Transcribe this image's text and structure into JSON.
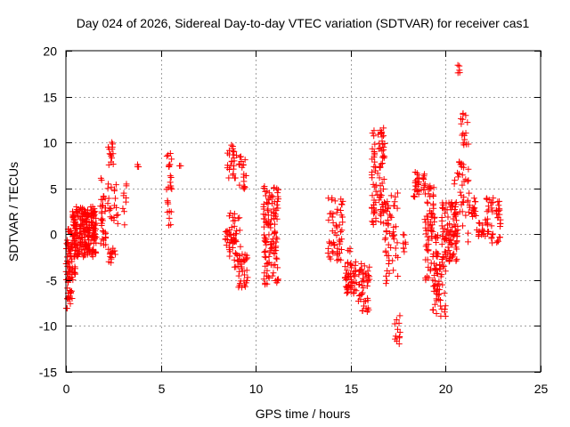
{
  "chart_data": {
    "type": "scatter",
    "title": "Day 024 of 2026, Sidereal Day-to-day VTEC variation (SDTVAR) for receiver cas1",
    "xlabel": "GPS time / hours",
    "ylabel": "SDTVAR / TECUs",
    "xlim": [
      0,
      25
    ],
    "ylim": [
      -15,
      20
    ],
    "xticks": [
      0,
      5,
      10,
      15,
      20,
      25
    ],
    "yticks": [
      -15,
      -10,
      -5,
      0,
      5,
      10,
      15,
      20
    ],
    "grid": true,
    "marker": "+",
    "color": "#ff0000",
    "clusters": [
      {
        "x": [
          0.0,
          0.35
        ],
        "y": [
          -8.2,
          0.8
        ],
        "n": 70
      },
      {
        "x": [
          0.2,
          0.5
        ],
        "y": [
          -5.0,
          -3.5
        ],
        "n": 10
      },
      {
        "x": [
          0.35,
          1.6
        ],
        "y": [
          -2.5,
          3.0
        ],
        "n": 230
      },
      {
        "x": [
          1.8,
          2.1
        ],
        "y": [
          -1.5,
          6.5
        ],
        "n": 30
      },
      {
        "x": [
          2.2,
          2.5
        ],
        "y": [
          7.5,
          10.2
        ],
        "n": 14
      },
      {
        "x": [
          2.2,
          2.6
        ],
        "y": [
          -3.2,
          -1.5
        ],
        "n": 14
      },
      {
        "x": [
          2.2,
          3.2
        ],
        "y": [
          1.0,
          5.5
        ],
        "n": 30
      },
      {
        "x": [
          3.75,
          3.85
        ],
        "y": [
          7.3,
          7.6
        ],
        "n": 3
      },
      {
        "x": [
          5.3,
          5.6
        ],
        "y": [
          0.8,
          9.6
        ],
        "n": 25
      },
      {
        "x": [
          5.95,
          6.05
        ],
        "y": [
          7.3,
          7.5
        ],
        "n": 2
      },
      {
        "x": [
          8.4,
          9.0
        ],
        "y": [
          -1.5,
          0.5
        ],
        "n": 30
      },
      {
        "x": [
          8.5,
          9.0
        ],
        "y": [
          6.0,
          9.8
        ],
        "n": 25
      },
      {
        "x": [
          8.6,
          9.2
        ],
        "y": [
          -4.0,
          2.5
        ],
        "n": 25
      },
      {
        "x": [
          9.0,
          9.6
        ],
        "y": [
          -5.8,
          -2.0
        ],
        "n": 35
      },
      {
        "x": [
          9.1,
          9.5
        ],
        "y": [
          3.5,
          8.5
        ],
        "n": 18
      },
      {
        "x": [
          10.4,
          11.2
        ],
        "y": [
          -5.5,
          5.3
        ],
        "n": 120
      },
      {
        "x": [
          13.8,
          14.6
        ],
        "y": [
          -3.0,
          4.0
        ],
        "n": 55
      },
      {
        "x": [
          14.7,
          15.3
        ],
        "y": [
          -6.5,
          -3.0
        ],
        "n": 50
      },
      {
        "x": [
          14.8,
          15.0
        ],
        "y": [
          -2.0,
          -1.5
        ],
        "n": 3
      },
      {
        "x": [
          15.4,
          16.0
        ],
        "y": [
          -8.6,
          -3.2
        ],
        "n": 45
      },
      {
        "x": [
          16.1,
          16.8
        ],
        "y": [
          1.0,
          11.6
        ],
        "n": 90
      },
      {
        "x": [
          16.8,
          17.5
        ],
        "y": [
          -6.0,
          4.5
        ],
        "n": 55
      },
      {
        "x": [
          17.3,
          17.6
        ],
        "y": [
          -12.5,
          -8.5
        ],
        "n": 12
      },
      {
        "x": [
          17.6,
          17.9
        ],
        "y": [
          -2.0,
          0.0
        ],
        "n": 8
      },
      {
        "x": [
          18.3,
          18.9
        ],
        "y": [
          3.8,
          6.8
        ],
        "n": 30
      },
      {
        "x": [
          18.9,
          19.6
        ],
        "y": [
          -5.0,
          5.5
        ],
        "n": 80
      },
      {
        "x": [
          19.3,
          20.0
        ],
        "y": [
          -9.0,
          -3.0
        ],
        "n": 50
      },
      {
        "x": [
          19.8,
          20.6
        ],
        "y": [
          -3.0,
          3.5
        ],
        "n": 90
      },
      {
        "x": [
          20.4,
          21.2
        ],
        "y": [
          -1.0,
          8.0
        ],
        "n": 45
      },
      {
        "x": [
          20.6,
          20.8
        ],
        "y": [
          16.8,
          18.8
        ],
        "n": 5
      },
      {
        "x": [
          20.8,
          21.2
        ],
        "y": [
          9.5,
          13.5
        ],
        "n": 16
      },
      {
        "x": [
          21.2,
          21.6
        ],
        "y": [
          1.5,
          4.5
        ],
        "n": 18
      },
      {
        "x": [
          21.6,
          22.2
        ],
        "y": [
          -0.5,
          2.0
        ],
        "n": 20
      },
      {
        "x": [
          22.1,
          22.9
        ],
        "y": [
          -1.0,
          4.0
        ],
        "n": 45
      }
    ]
  }
}
